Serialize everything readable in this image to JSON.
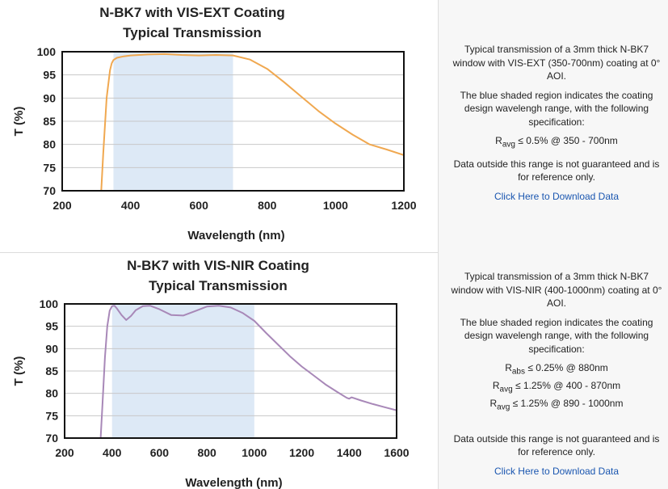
{
  "chart_data": [
    {
      "type": "line",
      "title": "N-BK7 with VIS-EXT Coating",
      "subtitle": "Typical Transmission",
      "xlabel": "Wavelength (nm)",
      "ylabel": "T (%)",
      "xlim": [
        200,
        1200
      ],
      "ylim": [
        70,
        100
      ],
      "xticks": [
        "200",
        "400",
        "600",
        "800",
        "1000",
        "1200"
      ],
      "yticks": [
        "100",
        "95",
        "90",
        "85",
        "80",
        "75",
        "70"
      ],
      "grid": "horizontal",
      "shaded_range": [
        350,
        700
      ],
      "shade_color": "#dde9f6",
      "color": "#f0a850",
      "series": [
        {
          "x": [
            312,
            320,
            330,
            340,
            345,
            350,
            360,
            380,
            400,
            450,
            500,
            550,
            600,
            650,
            700,
            750,
            800,
            850,
            900,
            950,
            1000,
            1050,
            1100,
            1150,
            1200
          ],
          "values": [
            67,
            78,
            90,
            96,
            97.5,
            98.2,
            98.7,
            99.0,
            99.2,
            99.4,
            99.5,
            99.3,
            99.2,
            99.3,
            99.2,
            98.3,
            96.3,
            93.4,
            90.3,
            87.2,
            84.5,
            82.1,
            80.0,
            78.9,
            77.7
          ]
        }
      ]
    },
    {
      "type": "line",
      "title": "N-BK7 with VIS-NIR Coating",
      "subtitle": "Typical Transmission",
      "xlabel": "Wavelength (nm)",
      "ylabel": "T (%)",
      "xlim": [
        200,
        1600
      ],
      "ylim": [
        70,
        100
      ],
      "xticks": [
        "200",
        "400",
        "600",
        "800",
        "1000",
        "1200",
        "1400",
        "1600"
      ],
      "yticks": [
        "100",
        "95",
        "90",
        "85",
        "80",
        "75",
        "70"
      ],
      "grid": "horizontal",
      "shaded_range": [
        400,
        1000
      ],
      "shade_color": "#dde9f6",
      "color": "#a888b8",
      "series": [
        {
          "x": [
            350,
            360,
            370,
            380,
            390,
            400,
            410,
            420,
            440,
            460,
            480,
            500,
            530,
            560,
            600,
            650,
            700,
            750,
            800,
            850,
            900,
            950,
            1000,
            1050,
            1100,
            1150,
            1200,
            1250,
            1300,
            1350,
            1390,
            1400,
            1410,
            1450,
            1500,
            1550,
            1600
          ],
          "values": [
            68,
            78,
            88,
            95,
            98.5,
            99.5,
            99.6,
            99.0,
            97.5,
            96.4,
            97.3,
            98.6,
            99.5,
            99.6,
            98.8,
            97.5,
            97.4,
            98.4,
            99.4,
            99.6,
            99.2,
            98.0,
            96.2,
            93.5,
            90.9,
            88.3,
            86.0,
            84.0,
            82.0,
            80.3,
            79.0,
            78.8,
            79.1,
            78.4,
            77.6,
            76.9,
            76.2
          ]
        }
      ]
    }
  ],
  "info": [
    {
      "desc": "Typical transmission of a 3mm thick N-BK7 window with VIS-EXT (350-700nm) coating at 0° AOI.",
      "shade_note": "The blue shaded region indicates the coating design wavelengh range, with the following specification:",
      "specs": [
        {
          "sym": "R",
          "sub": "avg",
          "text": " ≤ 0.5% @ 350 - 700nm"
        }
      ],
      "disclaimer": "Data outside this range is not guaranteed and is for reference only.",
      "link": "Click Here to Download Data"
    },
    {
      "desc": "Typical transmission of a 3mm thick N-BK7 window with VIS-NIR (400-1000nm) coating at 0° AOI.",
      "shade_note": "The blue shaded region indicates the coating design wavelengh range, with the following specification:",
      "specs": [
        {
          "sym": "R",
          "sub": "abs",
          "text": " ≤ 0.25% @ 880nm"
        },
        {
          "sym": "R",
          "sub": "avg",
          "text": " ≤ 1.25% @ 400 - 870nm"
        },
        {
          "sym": "R",
          "sub": "avg",
          "text": " ≤ 1.25% @ 890 - 1000nm"
        }
      ],
      "disclaimer": "Data outside this range is not guaranteed and is for reference only.",
      "link": "Click Here to Download Data"
    }
  ]
}
